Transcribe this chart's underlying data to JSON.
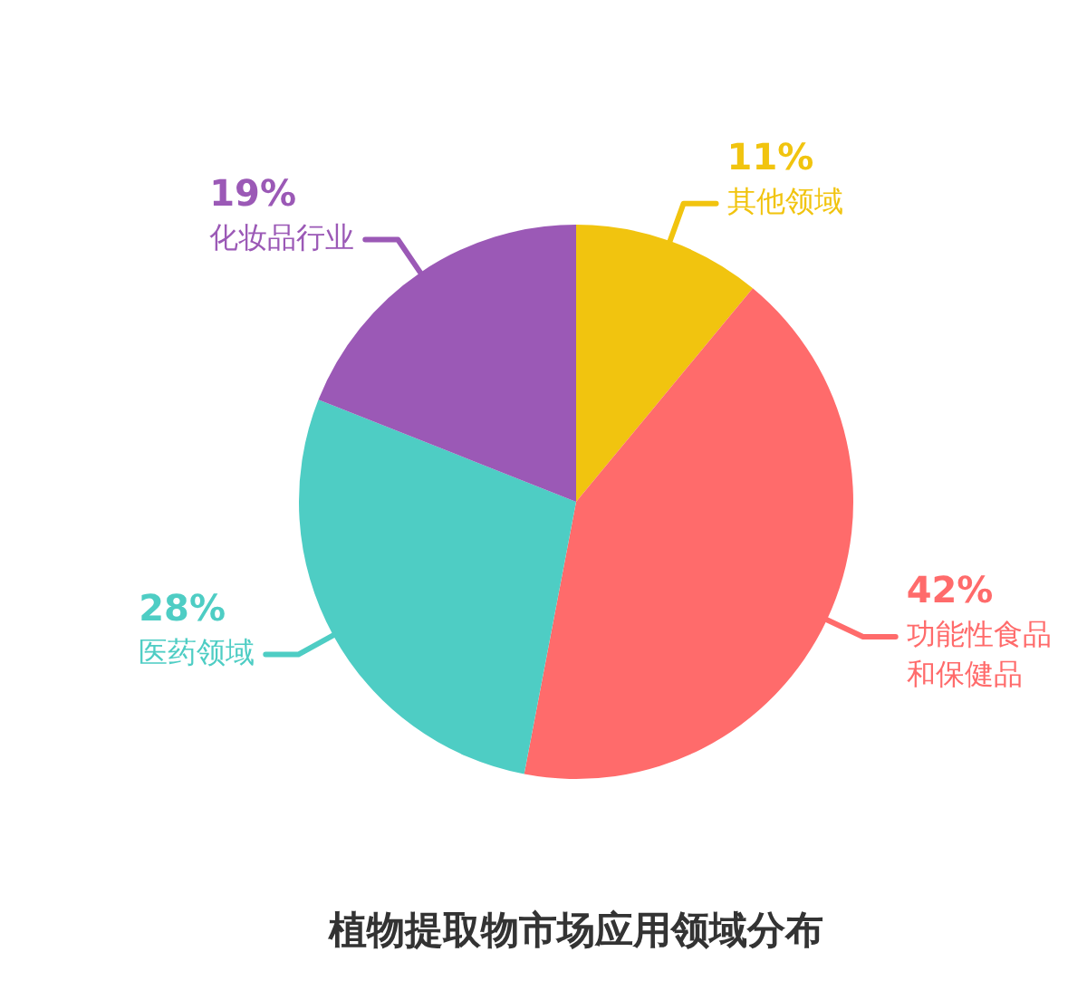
{
  "chart_data": {
    "type": "pie",
    "title": "植物提取物市场应用领域分布",
    "categories": [
      "其他领域",
      "功能性食品和保健品",
      "医药领域",
      "化妆品行业"
    ],
    "values": [
      11,
      42,
      28,
      19
    ],
    "colors": [
      "#f1c40f",
      "#ff6b6b",
      "#4ecdc4",
      "#9b59b6"
    ],
    "value_labels": [
      "11%",
      "42%",
      "28%",
      "19%"
    ]
  }
}
